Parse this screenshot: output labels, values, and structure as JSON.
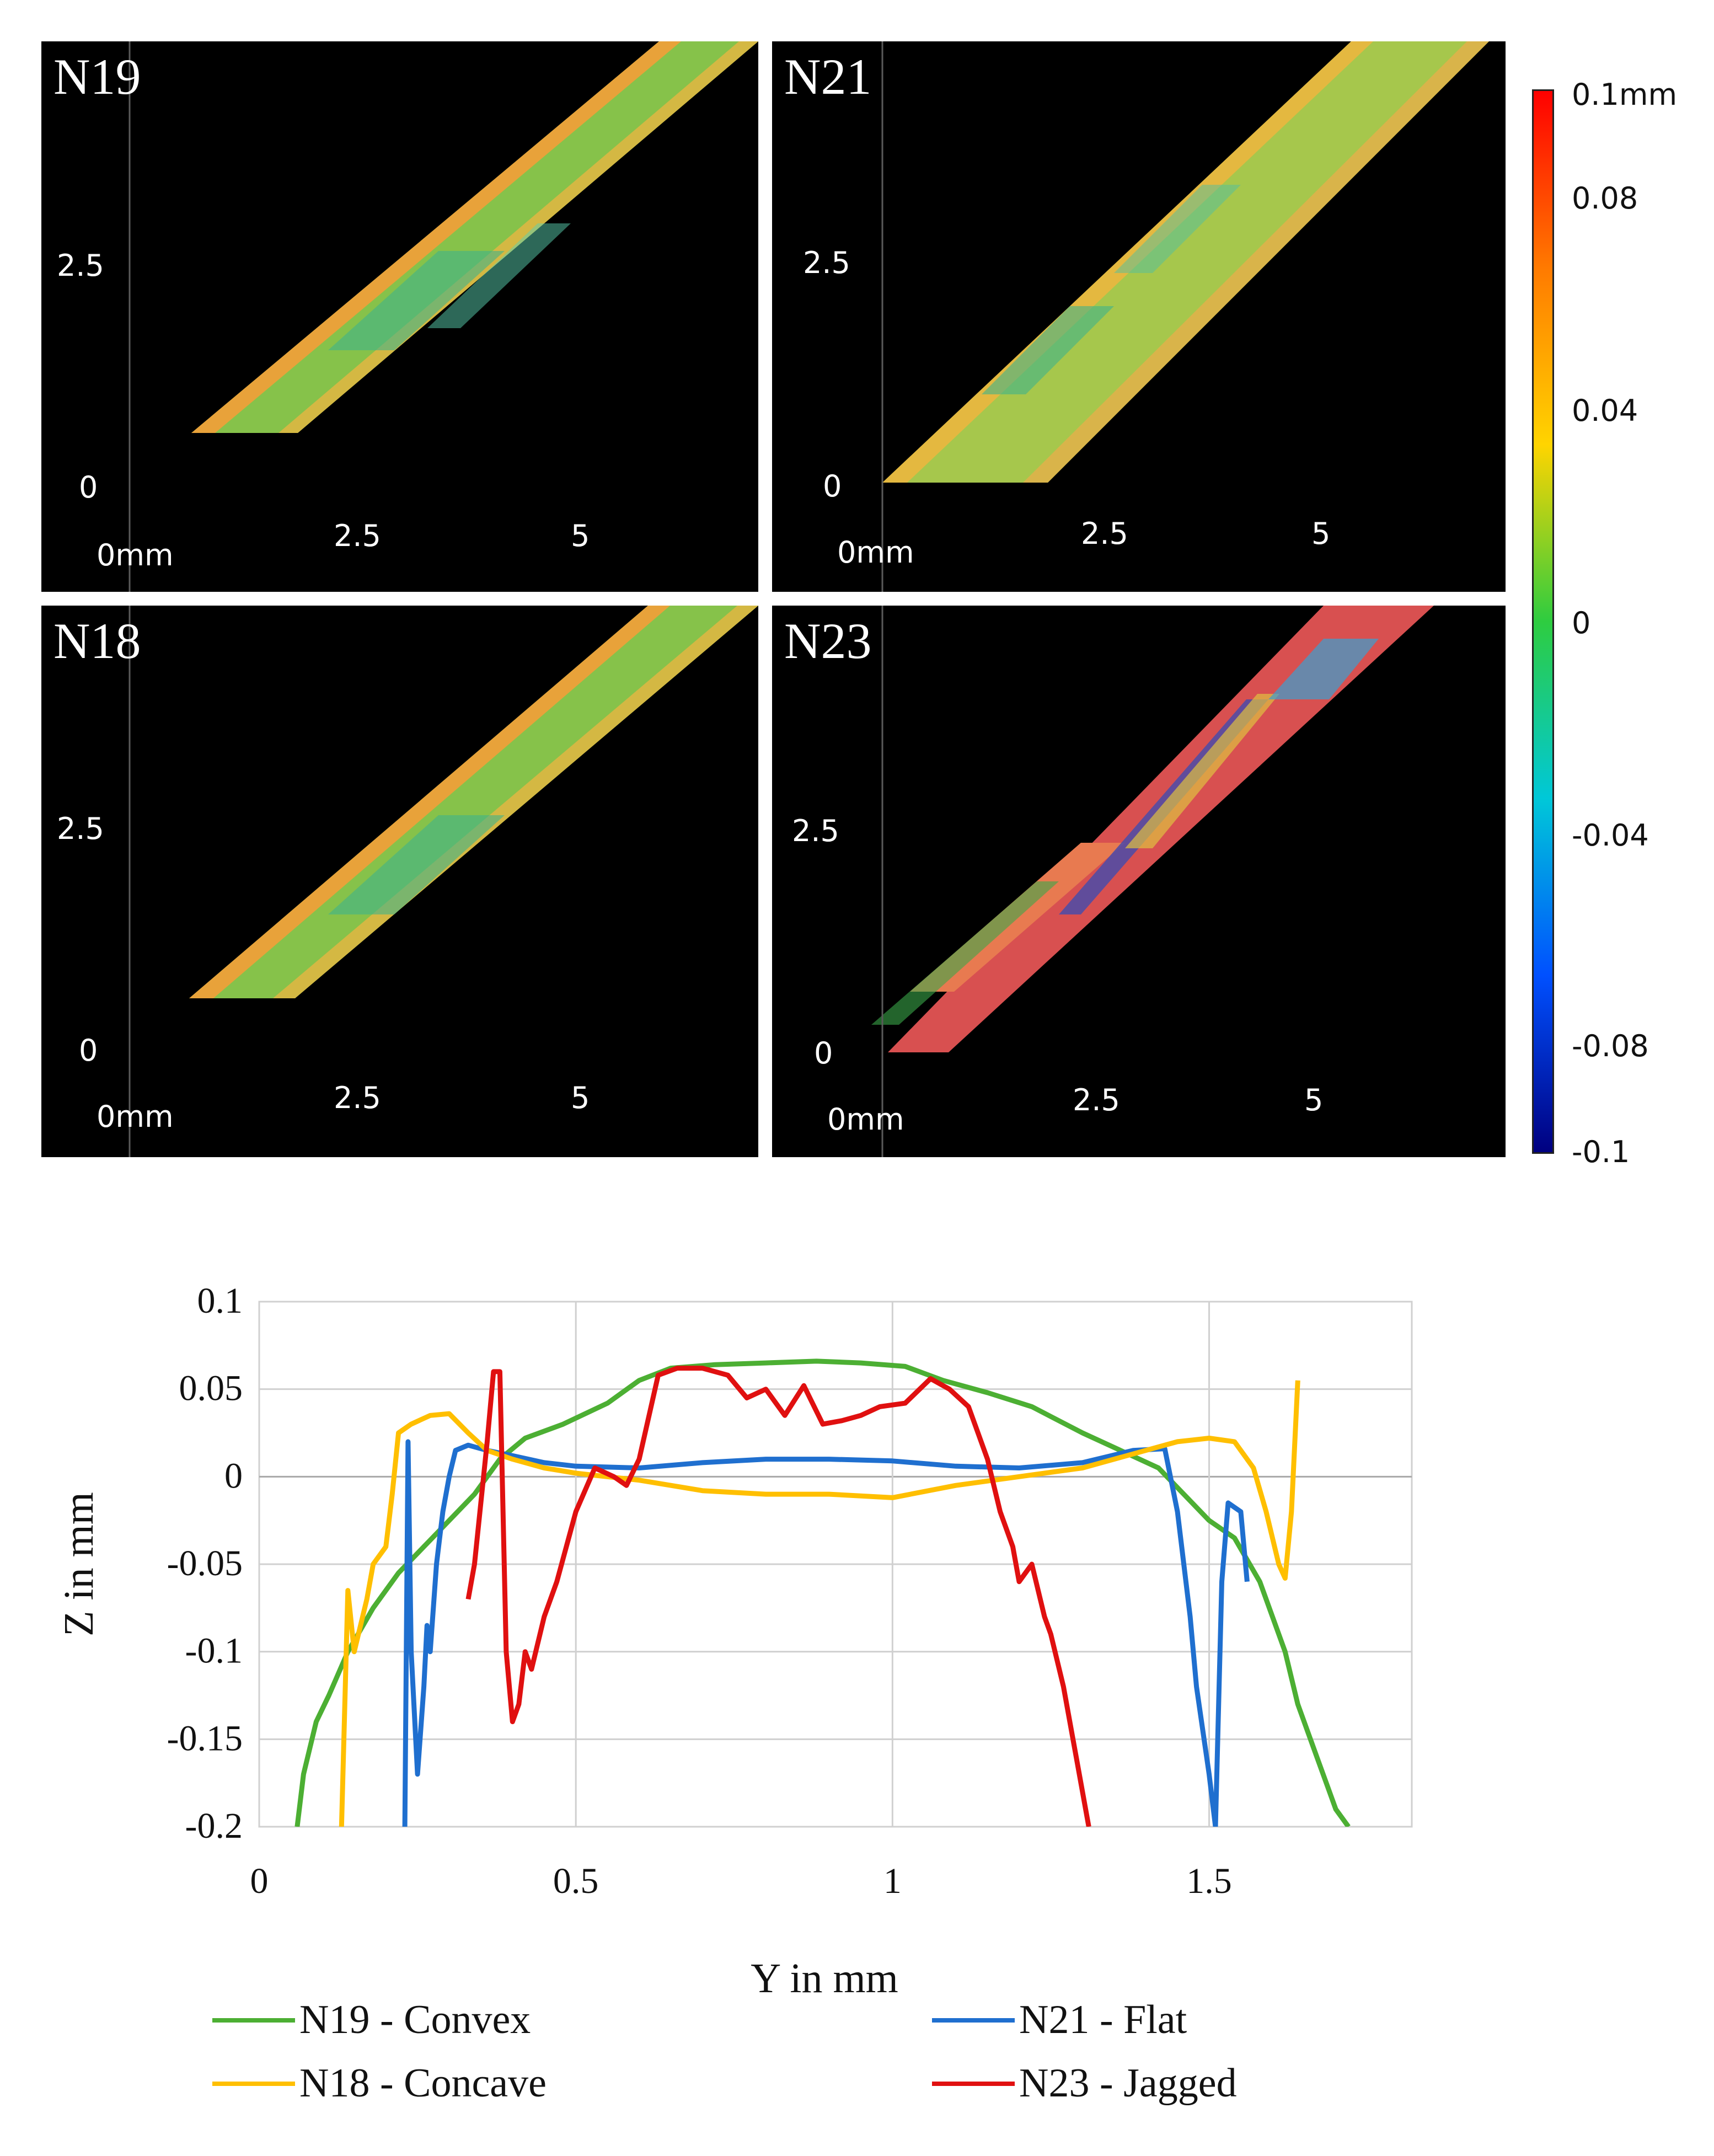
{
  "panels": [
    {
      "id": "N19",
      "label": "N19",
      "ticks": {
        "y_mid": "2.5",
        "y_zero": "0",
        "x_origin": "0mm",
        "x_mid": "2.5",
        "x_far": "5"
      }
    },
    {
      "id": "N21",
      "label": "N21",
      "ticks": {
        "y_mid": "2.5",
        "y_zero": "0",
        "x_origin": "0mm",
        "x_mid": "2.5",
        "x_far": "5"
      }
    },
    {
      "id": "N18",
      "label": "N18",
      "ticks": {
        "y_mid": "2.5",
        "y_zero": "0",
        "x_origin": "0mm",
        "x_mid": "2.5",
        "x_far": "5"
      }
    },
    {
      "id": "N23",
      "label": "N23",
      "ticks": {
        "y_mid": "2.5",
        "y_zero": "0",
        "x_origin": "0mm",
        "x_mid": "2.5",
        "x_far": "5"
      }
    }
  ],
  "colorbar": {
    "labels": [
      "0.1mm",
      "0.08",
      "0.04",
      "0",
      "-0.04",
      "-0.08",
      "-0.1"
    ],
    "colors": [
      "#ff0000",
      "#ff7a00",
      "#ffd400",
      "#2ecc40",
      "#00c8d8",
      "#0050ff",
      "#000080"
    ]
  },
  "chart_data": {
    "type": "line",
    "title": "",
    "xlabel": "Y  in mm",
    "ylabel": "Z in mm",
    "xlim": [
      0,
      1.82
    ],
    "ylim": [
      -0.2,
      0.1
    ],
    "xticks": [
      "0",
      "0.5",
      "1",
      "1.5"
    ],
    "xtick_values": [
      0,
      0.5,
      1,
      1.5
    ],
    "yticks": [
      "0.1",
      "0.05",
      "0",
      "-0.05",
      "-0.1",
      "-0.15",
      "-0.2"
    ],
    "ytick_values": [
      0.1,
      0.05,
      0,
      -0.05,
      -0.1,
      -0.15,
      -0.2
    ],
    "grid": true,
    "legend_position": "bottom",
    "series": [
      {
        "name": "N19 - Convex",
        "color": "#4caf33",
        "x": [
          0.06,
          0.07,
          0.09,
          0.11,
          0.14,
          0.18,
          0.22,
          0.26,
          0.3,
          0.34,
          0.38,
          0.42,
          0.48,
          0.55,
          0.6,
          0.65,
          0.72,
          0.8,
          0.88,
          0.95,
          1.02,
          1.08,
          1.15,
          1.22,
          1.3,
          1.36,
          1.42,
          1.46,
          1.5,
          1.54,
          1.58,
          1.62,
          1.64,
          1.67,
          1.69,
          1.7,
          1.72
        ],
        "y": [
          -0.2,
          -0.17,
          -0.14,
          -0.125,
          -0.1,
          -0.075,
          -0.055,
          -0.04,
          -0.025,
          -0.01,
          0.01,
          0.022,
          0.03,
          0.042,
          0.055,
          0.062,
          0.064,
          0.065,
          0.066,
          0.065,
          0.063,
          0.055,
          0.048,
          0.04,
          0.025,
          0.015,
          0.005,
          -0.01,
          -0.025,
          -0.035,
          -0.06,
          -0.1,
          -0.13,
          -0.16,
          -0.18,
          -0.19,
          -0.2
        ]
      },
      {
        "name": "N21 - Flat",
        "color": "#1f6fcf",
        "x": [
          0.23,
          0.235,
          0.24,
          0.25,
          0.26,
          0.265,
          0.27,
          0.28,
          0.29,
          0.3,
          0.31,
          0.33,
          0.36,
          0.4,
          0.45,
          0.5,
          0.6,
          0.7,
          0.8,
          0.9,
          1.0,
          1.1,
          1.2,
          1.3,
          1.38,
          1.43,
          1.45,
          1.47,
          1.48,
          1.5,
          1.51,
          1.52,
          1.53,
          1.55,
          1.56
        ],
        "y": [
          -0.2,
          0.02,
          -0.1,
          -0.17,
          -0.12,
          -0.085,
          -0.1,
          -0.05,
          -0.02,
          0.0,
          0.015,
          0.018,
          0.015,
          0.012,
          0.008,
          0.006,
          0.005,
          0.008,
          0.01,
          0.01,
          0.009,
          0.006,
          0.005,
          0.008,
          0.015,
          0.016,
          -0.02,
          -0.08,
          -0.12,
          -0.17,
          -0.2,
          -0.06,
          -0.015,
          -0.02,
          -0.06
        ]
      },
      {
        "name": "N18 - Concave",
        "color": "#ffbf00",
        "x": [
          0.13,
          0.14,
          0.15,
          0.17,
          0.18,
          0.2,
          0.21,
          0.22,
          0.24,
          0.27,
          0.3,
          0.33,
          0.36,
          0.4,
          0.45,
          0.5,
          0.6,
          0.7,
          0.8,
          0.9,
          1.0,
          1.1,
          1.2,
          1.3,
          1.4,
          1.45,
          1.5,
          1.54,
          1.57,
          1.59,
          1.61,
          1.62,
          1.63,
          1.64
        ],
        "y": [
          -0.2,
          -0.065,
          -0.1,
          -0.07,
          -0.05,
          -0.04,
          -0.01,
          0.025,
          0.03,
          0.035,
          0.036,
          0.025,
          0.015,
          0.01,
          0.005,
          0.002,
          -0.002,
          -0.008,
          -0.01,
          -0.01,
          -0.012,
          -0.005,
          0.0,
          0.005,
          0.015,
          0.02,
          0.022,
          0.02,
          0.005,
          -0.02,
          -0.05,
          -0.058,
          -0.02,
          0.055
        ]
      },
      {
        "name": "N23 - Jagged",
        "color": "#e01010",
        "x": [
          0.33,
          0.34,
          0.36,
          0.37,
          0.38,
          0.39,
          0.4,
          0.41,
          0.42,
          0.43,
          0.45,
          0.47,
          0.5,
          0.53,
          0.56,
          0.58,
          0.6,
          0.63,
          0.66,
          0.7,
          0.74,
          0.77,
          0.8,
          0.83,
          0.86,
          0.89,
          0.92,
          0.95,
          0.98,
          1.02,
          1.06,
          1.09,
          1.12,
          1.15,
          1.17,
          1.19,
          1.2,
          1.22,
          1.24,
          1.25,
          1.27,
          1.29,
          1.31
        ],
        "y": [
          -0.07,
          -0.05,
          0.02,
          0.06,
          0.06,
          -0.1,
          -0.14,
          -0.13,
          -0.1,
          -0.11,
          -0.08,
          -0.06,
          -0.02,
          0.005,
          0.0,
          -0.005,
          0.01,
          0.058,
          0.062,
          0.062,
          0.058,
          0.045,
          0.05,
          0.035,
          0.052,
          0.03,
          0.032,
          0.035,
          0.04,
          0.042,
          0.056,
          0.05,
          0.04,
          0.01,
          -0.02,
          -0.04,
          -0.06,
          -0.05,
          -0.08,
          -0.09,
          -0.12,
          -0.16,
          -0.2
        ]
      }
    ]
  }
}
